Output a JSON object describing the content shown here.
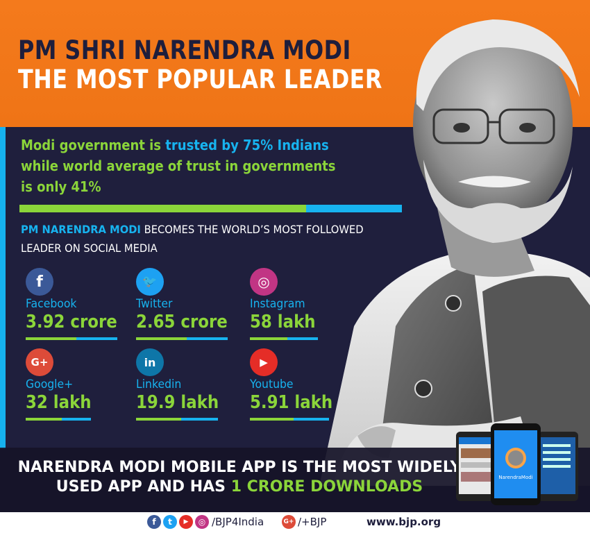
{
  "header": {
    "title_line1": "PM SHRI NARENDRA MODI",
    "title_line2": "THE MOST POPULAR LEADER"
  },
  "trust": {
    "p1": "Modi government is ",
    "p2": "trusted by ",
    "p3": "75% Indians",
    "p4": "while world average of trust in governments",
    "p5": "is only 41%",
    "india_trust_percent": 75,
    "world_trust_percent": 41
  },
  "followed": {
    "highlight": "PM NARENDRA MODI",
    "rest_line1": " BECOMES THE WORLD’S MOST FOLLOWED",
    "line2": "LEADER ON SOCIAL MEDIA"
  },
  "stats": [
    {
      "name": "Facebook",
      "value": "3.92 crore",
      "icon": "facebook-icon",
      "glyph": "f",
      "color": "#3b5998"
    },
    {
      "name": "Twitter",
      "value": "2.65 crore",
      "icon": "twitter-icon",
      "glyph": "🐦",
      "color": "#1da1f2"
    },
    {
      "name": "Instagram",
      "value": "58 lakh",
      "icon": "instagram-icon",
      "glyph": "◎",
      "color": "#c13584"
    },
    {
      "name": "Google+",
      "value": "32 lakh",
      "icon": "google-plus-icon",
      "glyph": "G+",
      "color": "#dd4b39"
    },
    {
      "name": "Linkedin",
      "value": "19.9 lakh",
      "icon": "linkedin-icon",
      "glyph": "in",
      "color": "#0e76a8"
    },
    {
      "name": "Youtube",
      "value": "5.91 lakh",
      "icon": "youtube-icon",
      "glyph": "▶",
      "color": "#e52d27"
    }
  ],
  "app": {
    "line1": "NARENDRA MODI MOBILE APP IS THE MOST WIDELY",
    "line2a": "USED APP AND HAS ",
    "line2b": "1 CRORE DOWNLOADS",
    "screen_label": "NarendraModi"
  },
  "footer": {
    "handle": "/BJP4India",
    "gplus": "/+BJP",
    "site": "www.bjp.org",
    "g_glyph": "G+"
  },
  "colors": {
    "orange": "#f47a1c",
    "navy": "#1e1e3c",
    "blue": "#17b3ef",
    "green": "#8bd53a"
  }
}
